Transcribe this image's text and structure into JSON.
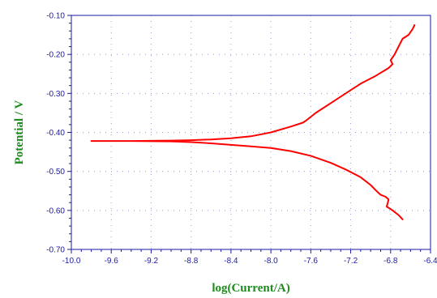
{
  "chart_data": {
    "type": "line",
    "xlabel": "log(Current/A)",
    "ylabel": "Potential / V",
    "xlim": [
      -10.0,
      -6.4
    ],
    "ylim": [
      -0.7,
      -0.1
    ],
    "grid": true,
    "x_ticks": [
      -10.0,
      -9.6,
      -9.2,
      -8.8,
      -8.4,
      -8.0,
      -7.6,
      -7.2,
      -6.8,
      -6.4
    ],
    "x_tick_labels": [
      "-10.0",
      "-9.6",
      "-9.2",
      "-8.8",
      "-8.4",
      "-8.0",
      "-7.6",
      "-7.2",
      "-6.8",
      "-6.4"
    ],
    "y_ticks": [
      -0.1,
      -0.2,
      -0.3,
      -0.4,
      -0.5,
      -0.6,
      -0.7
    ],
    "y_tick_labels": [
      "-0.10",
      "-0.20",
      "-0.30",
      "-0.40",
      "-0.50",
      "-0.60",
      "-0.70"
    ],
    "series": [
      {
        "color": "#ff0000",
        "points": [
          [
            -6.56,
            -0.125
          ],
          [
            -6.58,
            -0.135
          ],
          [
            -6.62,
            -0.15
          ],
          [
            -6.68,
            -0.16
          ],
          [
            -6.72,
            -0.18
          ],
          [
            -6.76,
            -0.2
          ],
          [
            -6.8,
            -0.215
          ],
          [
            -6.78,
            -0.225
          ],
          [
            -6.82,
            -0.235
          ],
          [
            -6.95,
            -0.255
          ],
          [
            -7.1,
            -0.275
          ],
          [
            -7.25,
            -0.3
          ],
          [
            -7.4,
            -0.325
          ],
          [
            -7.55,
            -0.35
          ],
          [
            -7.65,
            -0.37
          ],
          [
            -7.68,
            -0.375
          ],
          [
            -7.8,
            -0.385
          ],
          [
            -8.0,
            -0.4
          ],
          [
            -8.2,
            -0.41
          ],
          [
            -8.4,
            -0.415
          ],
          [
            -8.6,
            -0.418
          ],
          [
            -8.8,
            -0.42
          ],
          [
            -9.0,
            -0.421
          ],
          [
            -9.4,
            -0.422
          ],
          [
            -9.8,
            -0.422
          ],
          [
            -9.4,
            -0.422
          ],
          [
            -9.0,
            -0.423
          ],
          [
            -8.8,
            -0.425
          ],
          [
            -8.6,
            -0.428
          ],
          [
            -8.4,
            -0.432
          ],
          [
            -8.2,
            -0.436
          ],
          [
            -8.0,
            -0.44
          ],
          [
            -7.8,
            -0.448
          ],
          [
            -7.6,
            -0.46
          ],
          [
            -7.4,
            -0.478
          ],
          [
            -7.25,
            -0.495
          ],
          [
            -7.1,
            -0.515
          ],
          [
            -7.0,
            -0.535
          ],
          [
            -6.95,
            -0.548
          ],
          [
            -6.9,
            -0.56
          ],
          [
            -6.85,
            -0.565
          ],
          [
            -6.82,
            -0.572
          ],
          [
            -6.83,
            -0.582
          ],
          [
            -6.84,
            -0.59
          ],
          [
            -6.78,
            -0.6
          ],
          [
            -6.72,
            -0.612
          ],
          [
            -6.68,
            -0.623
          ]
        ]
      }
    ]
  }
}
